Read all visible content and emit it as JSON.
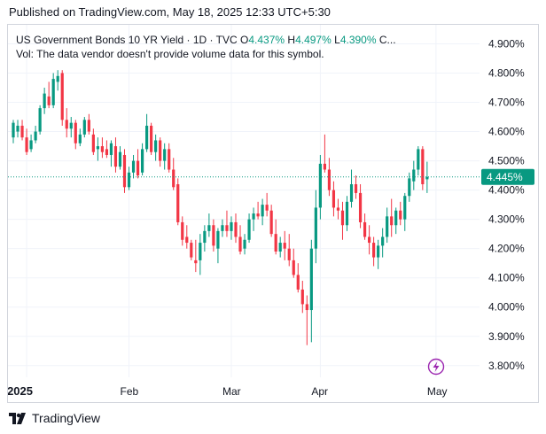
{
  "header": {
    "published": "Published on TradingView.com, May 18, 2025 12:33 UTC+5:30"
  },
  "legend": {
    "symbol": "US Government Bonds 10 YR Yield · 1D · TVC",
    "o_label": "O",
    "o_value": "4.437%",
    "h_label": "H",
    "h_value": "4.497%",
    "l_label": "L",
    "l_value": "4.390%",
    "c_label": "C...",
    "volume_note": "Vol: The data vendor doesn't provide volume data for this symbol."
  },
  "footer": {
    "brand": "TradingView"
  },
  "colors": {
    "up": "#089981",
    "down": "#f23645",
    "grid": "#f0f3fa",
    "text": "#131722",
    "live": "#9c27b0"
  },
  "icons": {
    "live": "lightning-icon",
    "logo": "tradingview-logo-icon"
  },
  "chart_data": {
    "type": "candlestick",
    "title": "US Government Bonds 10 YR Yield · 1D · TVC",
    "y_unit": "%",
    "ylim": [
      3.76,
      4.965
    ],
    "y_ticks": [
      "4.900%",
      "4.800%",
      "4.700%",
      "4.600%",
      "4.500%",
      "4.400%",
      "4.300%",
      "4.200%",
      "4.100%",
      "4.000%",
      "3.900%",
      "3.800%"
    ],
    "y_tick_values": [
      4.9,
      4.8,
      4.7,
      4.6,
      4.5,
      4.4,
      4.3,
      4.2,
      4.1,
      4.0,
      3.9,
      3.8
    ],
    "x_ticks": [
      {
        "label": "2025",
        "index": 3,
        "bold": true
      },
      {
        "label": "Feb",
        "index": 26
      },
      {
        "label": "Mar",
        "index": 49
      },
      {
        "label": "Apr",
        "index": 69
      },
      {
        "label": "May",
        "index": 95
      }
    ],
    "current_value": 4.445,
    "current_label": "4.445%",
    "grid": true,
    "candles": [
      {
        "o": 4.58,
        "h": 4.64,
        "l": 4.56,
        "c": 4.63
      },
      {
        "o": 4.6,
        "h": 4.64,
        "l": 4.58,
        "c": 4.62
      },
      {
        "o": 4.62,
        "h": 4.64,
        "l": 4.57,
        "c": 4.58
      },
      {
        "o": 4.58,
        "h": 4.61,
        "l": 4.52,
        "c": 4.53
      },
      {
        "o": 4.54,
        "h": 4.59,
        "l": 4.53,
        "c": 4.57
      },
      {
        "o": 4.57,
        "h": 4.62,
        "l": 4.56,
        "c": 4.6
      },
      {
        "o": 4.6,
        "h": 4.69,
        "l": 4.59,
        "c": 4.68
      },
      {
        "o": 4.68,
        "h": 4.75,
        "l": 4.66,
        "c": 4.73
      },
      {
        "o": 4.72,
        "h": 4.77,
        "l": 4.68,
        "c": 4.69
      },
      {
        "o": 4.69,
        "h": 4.8,
        "l": 4.68,
        "c": 4.78
      },
      {
        "o": 4.77,
        "h": 4.81,
        "l": 4.74,
        "c": 4.79
      },
      {
        "o": 4.8,
        "h": 4.81,
        "l": 4.62,
        "c": 4.64
      },
      {
        "o": 4.64,
        "h": 4.68,
        "l": 4.58,
        "c": 4.61
      },
      {
        "o": 4.61,
        "h": 4.65,
        "l": 4.58,
        "c": 4.63
      },
      {
        "o": 4.63,
        "h": 4.64,
        "l": 4.54,
        "c": 4.56
      },
      {
        "o": 4.56,
        "h": 4.61,
        "l": 4.55,
        "c": 4.59
      },
      {
        "o": 4.59,
        "h": 4.65,
        "l": 4.58,
        "c": 4.64
      },
      {
        "o": 4.64,
        "h": 4.66,
        "l": 4.59,
        "c": 4.6
      },
      {
        "o": 4.59,
        "h": 4.61,
        "l": 4.52,
        "c": 4.53
      },
      {
        "o": 4.54,
        "h": 4.58,
        "l": 4.5,
        "c": 4.55
      },
      {
        "o": 4.55,
        "h": 4.58,
        "l": 4.51,
        "c": 4.53
      },
      {
        "o": 4.54,
        "h": 4.57,
        "l": 4.51,
        "c": 4.52
      },
      {
        "o": 4.52,
        "h": 4.57,
        "l": 4.48,
        "c": 4.56
      },
      {
        "o": 4.55,
        "h": 4.58,
        "l": 4.46,
        "c": 4.48
      },
      {
        "o": 4.48,
        "h": 4.55,
        "l": 4.47,
        "c": 4.53
      },
      {
        "o": 4.52,
        "h": 4.54,
        "l": 4.39,
        "c": 4.41
      },
      {
        "o": 4.41,
        "h": 4.48,
        "l": 4.4,
        "c": 4.46
      },
      {
        "o": 4.46,
        "h": 4.52,
        "l": 4.44,
        "c": 4.5
      },
      {
        "o": 4.5,
        "h": 4.54,
        "l": 4.44,
        "c": 4.45
      },
      {
        "o": 4.46,
        "h": 4.56,
        "l": 4.45,
        "c": 4.54
      },
      {
        "o": 4.54,
        "h": 4.66,
        "l": 4.53,
        "c": 4.62
      },
      {
        "o": 4.62,
        "h": 4.63,
        "l": 4.52,
        "c": 4.53
      },
      {
        "o": 4.53,
        "h": 4.59,
        "l": 4.5,
        "c": 4.57
      },
      {
        "o": 4.57,
        "h": 4.58,
        "l": 4.48,
        "c": 4.5
      },
      {
        "o": 4.5,
        "h": 4.56,
        "l": 4.47,
        "c": 4.54
      },
      {
        "o": 4.54,
        "h": 4.56,
        "l": 4.46,
        "c": 4.47
      },
      {
        "o": 4.47,
        "h": 4.51,
        "l": 4.4,
        "c": 4.41
      },
      {
        "o": 4.42,
        "h": 4.44,
        "l": 4.28,
        "c": 4.29
      },
      {
        "o": 4.29,
        "h": 4.31,
        "l": 4.21,
        "c": 4.23
      },
      {
        "o": 4.24,
        "h": 4.28,
        "l": 4.2,
        "c": 4.22
      },
      {
        "o": 4.22,
        "h": 4.23,
        "l": 4.16,
        "c": 4.17
      },
      {
        "o": 4.16,
        "h": 4.23,
        "l": 4.12,
        "c": 4.15
      },
      {
        "o": 4.16,
        "h": 4.25,
        "l": 4.11,
        "c": 4.22
      },
      {
        "o": 4.22,
        "h": 4.28,
        "l": 4.19,
        "c": 4.26
      },
      {
        "o": 4.26,
        "h": 4.32,
        "l": 4.24,
        "c": 4.28
      },
      {
        "o": 4.28,
        "h": 4.3,
        "l": 4.19,
        "c": 4.21
      },
      {
        "o": 4.2,
        "h": 4.27,
        "l": 4.15,
        "c": 4.26
      },
      {
        "o": 4.26,
        "h": 4.3,
        "l": 4.24,
        "c": 4.28
      },
      {
        "o": 4.28,
        "h": 4.33,
        "l": 4.24,
        "c": 4.26
      },
      {
        "o": 4.26,
        "h": 4.31,
        "l": 4.23,
        "c": 4.29
      },
      {
        "o": 4.29,
        "h": 4.32,
        "l": 4.22,
        "c": 4.24
      },
      {
        "o": 4.24,
        "h": 4.28,
        "l": 4.18,
        "c": 4.19
      },
      {
        "o": 4.2,
        "h": 4.25,
        "l": 4.18,
        "c": 4.23
      },
      {
        "o": 4.23,
        "h": 4.32,
        "l": 4.22,
        "c": 4.3
      },
      {
        "o": 4.3,
        "h": 4.34,
        "l": 4.26,
        "c": 4.32
      },
      {
        "o": 4.32,
        "h": 4.36,
        "l": 4.3,
        "c": 4.31
      },
      {
        "o": 4.31,
        "h": 4.37,
        "l": 4.28,
        "c": 4.35
      },
      {
        "o": 4.35,
        "h": 4.39,
        "l": 4.31,
        "c": 4.33
      },
      {
        "o": 4.33,
        "h": 4.35,
        "l": 4.24,
        "c": 4.25
      },
      {
        "o": 4.25,
        "h": 4.3,
        "l": 4.18,
        "c": 4.19
      },
      {
        "o": 4.19,
        "h": 4.24,
        "l": 4.17,
        "c": 4.22
      },
      {
        "o": 4.22,
        "h": 4.26,
        "l": 4.16,
        "c": 4.2
      },
      {
        "o": 4.2,
        "h": 4.25,
        "l": 4.14,
        "c": 4.16
      },
      {
        "o": 4.16,
        "h": 4.2,
        "l": 4.1,
        "c": 4.11
      },
      {
        "o": 4.11,
        "h": 4.15,
        "l": 4.05,
        "c": 4.06
      },
      {
        "o": 4.06,
        "h": 4.09,
        "l": 3.98,
        "c": 4.01
      },
      {
        "o": 4.01,
        "h": 4.04,
        "l": 3.87,
        "c": 3.99
      },
      {
        "o": 3.99,
        "h": 4.23,
        "l": 3.88,
        "c": 4.2
      },
      {
        "o": 4.2,
        "h": 4.4,
        "l": 4.15,
        "c": 4.34
      },
      {
        "o": 4.34,
        "h": 4.52,
        "l": 4.3,
        "c": 4.49
      },
      {
        "o": 4.49,
        "h": 4.59,
        "l": 4.46,
        "c": 4.47
      },
      {
        "o": 4.47,
        "h": 4.51,
        "l": 4.38,
        "c": 4.4
      },
      {
        "o": 4.4,
        "h": 4.43,
        "l": 4.31,
        "c": 4.34
      },
      {
        "o": 4.34,
        "h": 4.37,
        "l": 4.3,
        "c": 4.33
      },
      {
        "o": 4.33,
        "h": 4.36,
        "l": 4.23,
        "c": 4.28
      },
      {
        "o": 4.28,
        "h": 4.38,
        "l": 4.26,
        "c": 4.36
      },
      {
        "o": 4.36,
        "h": 4.47,
        "l": 4.34,
        "c": 4.42
      },
      {
        "o": 4.42,
        "h": 4.45,
        "l": 4.37,
        "c": 4.39
      },
      {
        "o": 4.39,
        "h": 4.42,
        "l": 4.27,
        "c": 4.29
      },
      {
        "o": 4.29,
        "h": 4.32,
        "l": 4.23,
        "c": 4.24
      },
      {
        "o": 4.24,
        "h": 4.28,
        "l": 4.18,
        "c": 4.22
      },
      {
        "o": 4.22,
        "h": 4.24,
        "l": 4.14,
        "c": 4.17
      },
      {
        "o": 4.17,
        "h": 4.23,
        "l": 4.13,
        "c": 4.21
      },
      {
        "o": 4.21,
        "h": 4.27,
        "l": 4.17,
        "c": 4.24
      },
      {
        "o": 4.24,
        "h": 4.34,
        "l": 4.22,
        "c": 4.31
      },
      {
        "o": 4.31,
        "h": 4.37,
        "l": 4.24,
        "c": 4.28
      },
      {
        "o": 4.28,
        "h": 4.34,
        "l": 4.25,
        "c": 4.33
      },
      {
        "o": 4.33,
        "h": 4.36,
        "l": 4.28,
        "c": 4.3
      },
      {
        "o": 4.3,
        "h": 4.39,
        "l": 4.26,
        "c": 4.38
      },
      {
        "o": 4.38,
        "h": 4.46,
        "l": 4.36,
        "c": 4.44
      },
      {
        "o": 4.43,
        "h": 4.5,
        "l": 4.4,
        "c": 4.47
      },
      {
        "o": 4.47,
        "h": 4.55,
        "l": 4.45,
        "c": 4.54
      },
      {
        "o": 4.54,
        "h": 4.55,
        "l": 4.4,
        "c": 4.42
      },
      {
        "o": 4.437,
        "h": 4.497,
        "l": 4.39,
        "c": 4.445
      }
    ]
  }
}
